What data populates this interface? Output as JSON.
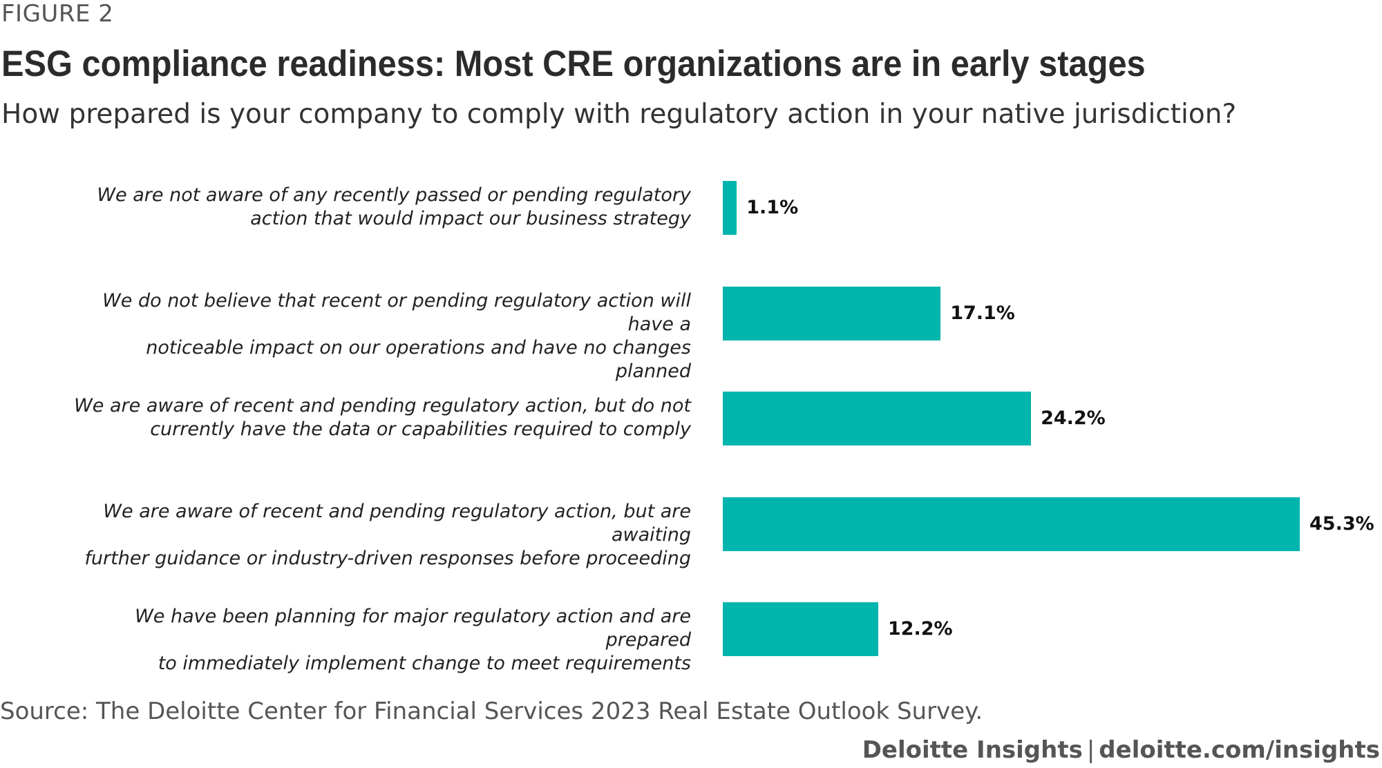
{
  "figure_label": "FIGURE 2",
  "title": "ESG compliance readiness: Most CRE organizations are in early stages",
  "subtitle": "How prepared is your company to comply with regulatory action in your native jurisdiction?",
  "source": "Source: The Deloitte Center for Financial Services 2023 Real Estate Outlook Survey.",
  "credit": {
    "brand": "Deloitte Insights",
    "separator": "|",
    "url": "deloitte.com/insights"
  },
  "colors": {
    "bar": "#00b5ad"
  },
  "chart_data": {
    "type": "bar",
    "orientation": "horizontal",
    "categories": [
      [
        "We are not aware of any recently passed or pending regulatory",
        "action that would impact our business strategy"
      ],
      [
        "We do not believe that recent or pending regulatory action will have a",
        "noticeable impact on our operations and have no changes planned"
      ],
      [
        "We are aware of recent and pending regulatory action, but do not",
        "currently have the data or capabilities required to comply"
      ],
      [
        "We are aware of recent and pending regulatory action, but are awaiting",
        "further guidance or industry-driven responses before proceeding"
      ],
      [
        "We have been planning for major regulatory action and are prepared",
        "to immediately implement change to meet requirements"
      ]
    ],
    "values": [
      1.1,
      17.1,
      24.2,
      45.3,
      12.2
    ],
    "value_labels": [
      "1.1%",
      "17.1%",
      "24.2%",
      "45.3%",
      "12.2%"
    ],
    "xlim": [
      0,
      45.3
    ],
    "grid": false,
    "legend": "none"
  }
}
